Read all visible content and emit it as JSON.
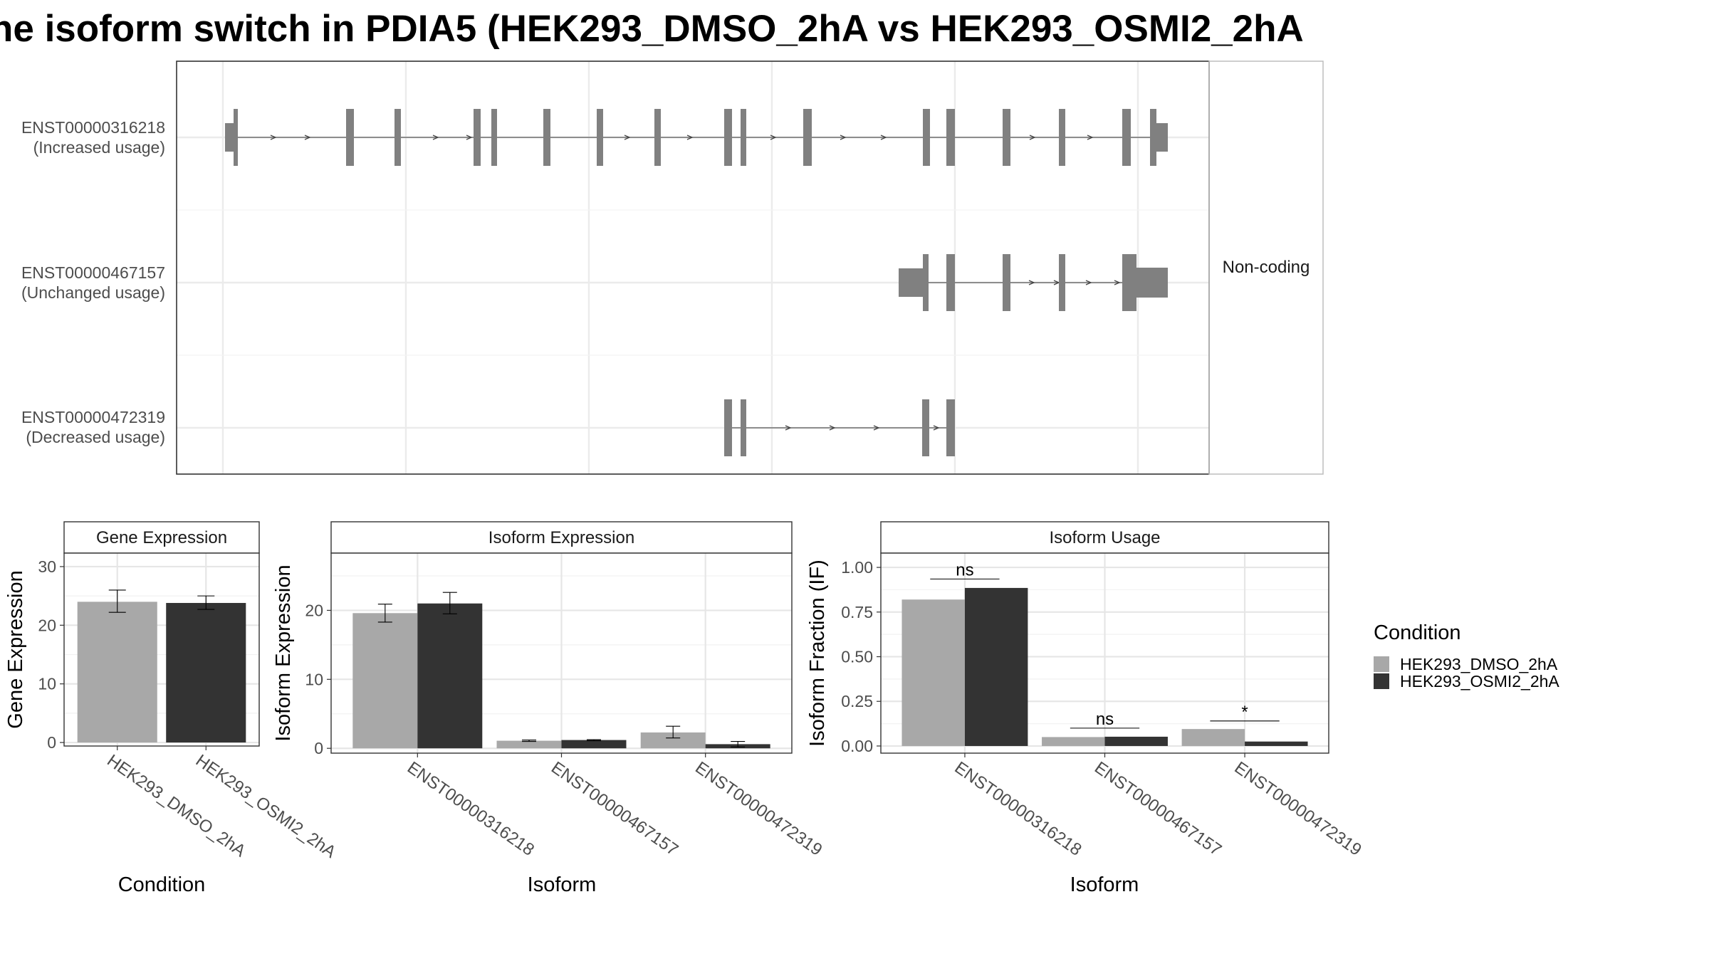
{
  "title": "he isoform switch in PDIA5 (HEK293_DMSO_2hA vs HEK293_OSMI2_2hA",
  "structure_panel": {
    "side_label": "Non-coding",
    "transcripts": [
      {
        "id": "ENST00000316218",
        "usage": "(Increased usage)"
      },
      {
        "id": "ENST00000467157",
        "usage": "(Unchanged usage)"
      },
      {
        "id": "ENST00000472319",
        "usage": "(Decreased usage)"
      }
    ]
  },
  "legend": {
    "title": "Condition",
    "items": [
      {
        "label": "HEK293_DMSO_2hA",
        "color": "#a8a8a8"
      },
      {
        "label": "HEK293_OSMI2_2hA",
        "color": "#333333"
      }
    ]
  },
  "chart_data": [
    {
      "type": "bar",
      "strip": "Gene Expression",
      "xlabel": "Condition",
      "ylabel": "Gene Expression",
      "categories": [
        "HEK293_DMSO_2hA",
        "HEK293_OSMI2_2hA"
      ],
      "values": [
        24.0,
        23.8
      ],
      "error": [
        [
          22.2,
          26.0
        ],
        [
          22.7,
          25.0
        ]
      ],
      "colors": [
        "#a8a8a8",
        "#333333"
      ],
      "ylim": [
        -0.6,
        32.3
      ],
      "yticks": [
        0,
        10,
        20,
        30
      ]
    },
    {
      "type": "bar",
      "strip": "Isoform Expression",
      "xlabel": "Isoform",
      "ylabel": "Isoform Expression",
      "categories": [
        "ENST00000316218",
        "ENST00000467157",
        "ENST00000472319"
      ],
      "series": [
        {
          "name": "HEK293_DMSO_2hA",
          "values": [
            19.6,
            1.1,
            2.3
          ],
          "error": [
            [
              18.3,
              20.9
            ],
            [
              1.0,
              1.2
            ],
            [
              1.5,
              3.2
            ]
          ],
          "color": "#a8a8a8"
        },
        {
          "name": "HEK293_OSMI2_2hA",
          "values": [
            21.0,
            1.2,
            0.6
          ],
          "error": [
            [
              19.5,
              22.6
            ],
            [
              1.1,
              1.25
            ],
            [
              0.2,
              1.0
            ]
          ],
          "color": "#333333"
        }
      ],
      "ylim": [
        -0.7,
        28.3
      ],
      "yticks": [
        0,
        10,
        20
      ]
    },
    {
      "type": "bar",
      "strip": "Isoform Usage",
      "xlabel": "Isoform",
      "ylabel": "Isoform Fraction (IF)",
      "categories": [
        "ENST00000316218",
        "ENST00000467157",
        "ENST00000472319"
      ],
      "series": [
        {
          "name": "HEK293_DMSO_2hA",
          "values": [
            0.82,
            0.05,
            0.095
          ],
          "color": "#a8a8a8"
        },
        {
          "name": "HEK293_OSMI2_2hA",
          "values": [
            0.885,
            0.052,
            0.025
          ],
          "color": "#333333"
        }
      ],
      "significance": [
        "ns",
        "ns",
        "*"
      ],
      "sig_y": [
        0.935,
        0.1,
        0.14
      ],
      "ylim": [
        -0.04,
        1.08
      ],
      "yticks": [
        0.0,
        0.25,
        0.5,
        0.75,
        1.0
      ],
      "ytick_labels": [
        "0.00",
        "0.25",
        "0.50",
        "0.75",
        "1.00"
      ]
    }
  ]
}
